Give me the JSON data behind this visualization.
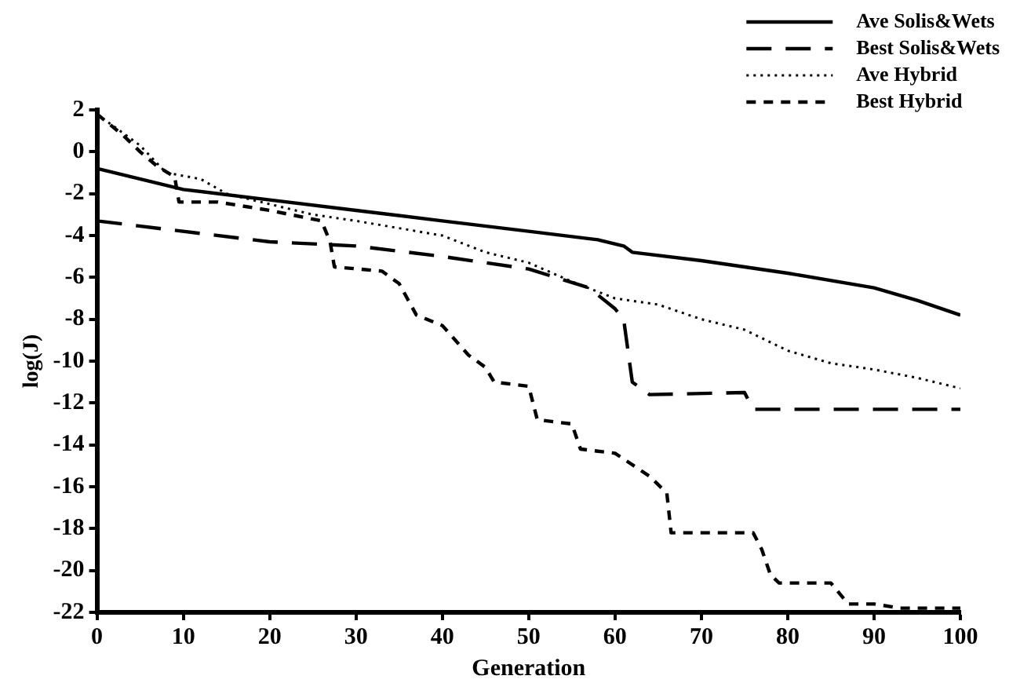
{
  "chart_data": {
    "type": "line",
    "xlabel": "Generation",
    "ylabel": "log(J)",
    "xlim": [
      0,
      100
    ],
    "xticks": [
      0,
      10,
      20,
      30,
      40,
      50,
      60,
      70,
      80,
      90,
      100
    ],
    "ylim": [
      -22,
      2
    ],
    "yticks": [
      -22,
      -20,
      -18,
      -16,
      -14,
      -12,
      -10,
      -8,
      -6,
      -4,
      -2,
      0,
      2
    ],
    "grid": false,
    "legend": "top right",
    "marker": "none",
    "series": [
      {
        "name": "Ave Solis&Wets",
        "color": "#000000",
        "line_style": "solid",
        "x": [
          0,
          10,
          20,
          30,
          40,
          50,
          58,
          61,
          62,
          70,
          80,
          90,
          95,
          100
        ],
        "values": [
          -0.8,
          -1.8,
          -2.3,
          -2.8,
          -3.3,
          -3.8,
          -4.2,
          -4.5,
          -4.8,
          -5.2,
          -5.8,
          -6.5,
          -7.1,
          -7.8
        ]
      },
      {
        "name": "Best Solis&Wets",
        "color": "#000000",
        "line_style": "long-dashed",
        "x": [
          0,
          20,
          30,
          40,
          50,
          57,
          60,
          61,
          62,
          64,
          75,
          76,
          100
        ],
        "values": [
          -3.3,
          -4.3,
          -4.5,
          -5.0,
          -5.6,
          -6.5,
          -7.5,
          -8.0,
          -11.0,
          -11.6,
          -11.5,
          -12.3,
          -12.3
        ]
      },
      {
        "name": "Ave Hybrid",
        "color": "#000000",
        "line_style": "dotted",
        "x": [
          0,
          5,
          8,
          12,
          15,
          20,
          25,
          30,
          40,
          45,
          50,
          55,
          60,
          65,
          70,
          75,
          80,
          85,
          90,
          95,
          100
        ],
        "values": [
          1.8,
          0.3,
          -1.0,
          -1.3,
          -2.0,
          -2.5,
          -3.0,
          -3.3,
          -4.0,
          -4.8,
          -5.3,
          -6.2,
          -7.0,
          -7.3,
          -8.0,
          -8.5,
          -9.5,
          -10.1,
          -10.4,
          -10.8,
          -11.3
        ]
      },
      {
        "name": "Best Hybrid",
        "color": "#000000",
        "line_style": "dashed",
        "x": [
          0,
          3,
          5,
          7,
          9,
          9.5,
          14,
          20,
          26,
          27,
          27.5,
          33,
          35,
          37,
          40,
          43,
          45,
          46,
          50,
          51,
          55,
          56,
          60,
          64,
          66,
          66.5,
          76,
          77,
          78,
          79,
          85,
          87,
          90,
          93,
          100
        ],
        "values": [
          1.8,
          0.8,
          0,
          -0.7,
          -1.2,
          -2.4,
          -2.4,
          -2.8,
          -3.3,
          -4.3,
          -5.5,
          -5.7,
          -6.3,
          -7.8,
          -8.3,
          -9.7,
          -10.3,
          -11.0,
          -11.2,
          -12.8,
          -13.0,
          -14.2,
          -14.4,
          -15.5,
          -16.3,
          -18.2,
          -18.2,
          -19.0,
          -20.2,
          -20.6,
          -20.6,
          -21.6,
          -21.6,
          -21.8,
          -21.8
        ]
      }
    ]
  }
}
